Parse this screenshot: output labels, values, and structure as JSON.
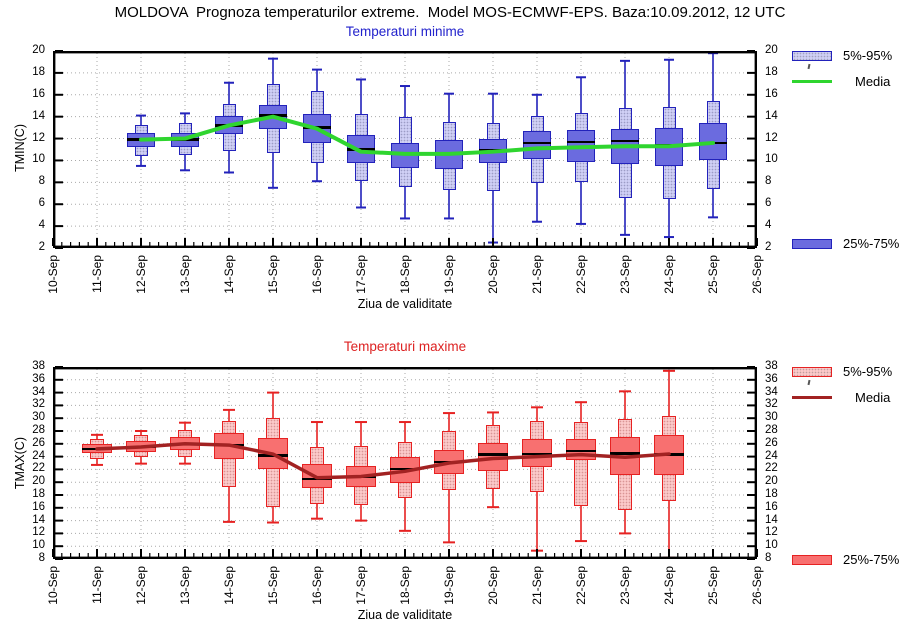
{
  "title": "MOLDOVA  Prognoza temperaturilor extreme.  Model MOS-ECMWF-EPS. Baza:10.09.2012, 12 UTC",
  "chart_data": [
    {
      "type": "boxplot",
      "name": "tmin",
      "title": "Temperaturi minime",
      "ylabel": "TMIN(C)",
      "xlabel": "Ziua de validitate",
      "ylim": [
        2,
        20
      ],
      "ytick_step": 2,
      "yticks": [
        20,
        18,
        16,
        14,
        12,
        10,
        8,
        6,
        4,
        2
      ],
      "grid": true,
      "legend_position": "right",
      "x_categories": [
        "10-Sep",
        "11-Sep",
        "12-Sep",
        "13-Sep",
        "14-Sep",
        "15-Sep",
        "16-Sep",
        "17-Sep",
        "18-Sep",
        "19-Sep",
        "20-Sep",
        "21-Sep",
        "22-Sep",
        "23-Sep",
        "24-Sep",
        "25-Sep",
        "26-Sep"
      ],
      "legend": {
        "p5p95": "5%-95%",
        "media": "Media",
        "p25p75": "25%-75%"
      },
      "colors": {
        "box_border": "#2222bb",
        "box_fill": "#6b6bdf",
        "light_fill": "#cfcff5",
        "median": "#000000",
        "media_line": "#2fd52f",
        "subtitle": "#2222cc"
      },
      "series": [
        {
          "date": "12-Sep",
          "min": 9.5,
          "p5": 10.4,
          "p25": 11.2,
          "median": 11.9,
          "p75": 12.5,
          "p95": 13.2,
          "max": 14.1,
          "media": 11.9
        },
        {
          "date": "13-Sep",
          "min": 9.1,
          "p5": 10.5,
          "p25": 11.2,
          "median": 11.9,
          "p75": 12.5,
          "p95": 13.4,
          "max": 14.3,
          "media": 12.0
        },
        {
          "date": "14-Sep",
          "min": 8.9,
          "p5": 10.9,
          "p25": 12.4,
          "median": 13.2,
          "p75": 14.1,
          "p95": 15.2,
          "max": 17.1,
          "media": 13.2
        },
        {
          "date": "15-Sep",
          "min": 7.5,
          "p5": 10.7,
          "p25": 12.9,
          "median": 14.1,
          "p75": 15.1,
          "p95": 17.0,
          "max": 19.3,
          "media": 14.0
        },
        {
          "date": "16-Sep",
          "min": 8.1,
          "p5": 9.8,
          "p25": 11.6,
          "median": 13.0,
          "p75": 14.2,
          "p95": 16.3,
          "max": 18.3,
          "media": 12.9
        },
        {
          "date": "17-Sep",
          "min": 5.7,
          "p5": 8.1,
          "p25": 9.8,
          "median": 11.0,
          "p75": 12.3,
          "p95": 14.2,
          "max": 17.4,
          "media": 10.8
        },
        {
          "date": "18-Sep",
          "min": 4.7,
          "p5": 7.6,
          "p25": 9.3,
          "median": 10.6,
          "p75": 11.6,
          "p95": 14.0,
          "max": 16.8,
          "media": 10.6
        },
        {
          "date": "19-Sep",
          "min": 4.7,
          "p5": 7.3,
          "p25": 9.2,
          "median": 10.6,
          "p75": 11.9,
          "p95": 13.5,
          "max": 16.1,
          "media": 10.6
        },
        {
          "date": "20-Sep",
          "min": 2.5,
          "p5": 7.2,
          "p25": 9.8,
          "median": 10.9,
          "p75": 12.0,
          "p95": 13.4,
          "max": 16.1,
          "media": 10.8
        },
        {
          "date": "21-Sep",
          "min": 4.4,
          "p5": 7.9,
          "p25": 10.1,
          "median": 11.6,
          "p75": 12.7,
          "p95": 14.1,
          "max": 16.0,
          "media": 11.1
        },
        {
          "date": "22-Sep",
          "min": 4.2,
          "p5": 8.0,
          "p25": 9.9,
          "median": 11.7,
          "p75": 12.8,
          "p95": 14.3,
          "max": 17.6,
          "media": 11.2
        },
        {
          "date": "23-Sep",
          "min": 3.2,
          "p5": 6.6,
          "p25": 9.7,
          "median": 11.8,
          "p75": 12.9,
          "p95": 14.8,
          "max": 19.1,
          "media": 11.3
        },
        {
          "date": "24-Sep",
          "min": 3.0,
          "p5": 6.5,
          "p25": 9.5,
          "median": 11.4,
          "p75": 13.0,
          "p95": 14.9,
          "max": 19.2,
          "media": 11.3
        },
        {
          "date": "25-Sep",
          "min": 4.8,
          "p5": 7.4,
          "p25": 10.0,
          "median": 11.6,
          "p75": 13.4,
          "p95": 15.4,
          "max": 19.8,
          "media": 11.6
        }
      ]
    },
    {
      "type": "boxplot",
      "name": "tmax",
      "title": "Temperaturi maxime",
      "ylabel": "TMAX(C)",
      "xlabel": "Ziua de validitate",
      "ylim": [
        8,
        38
      ],
      "ytick_step": 2,
      "yticks": [
        38,
        36,
        34,
        32,
        30,
        28,
        26,
        24,
        22,
        20,
        18,
        16,
        14,
        12,
        10,
        8
      ],
      "grid": true,
      "legend_position": "right",
      "x_categories": [
        "10-Sep",
        "11-Sep",
        "12-Sep",
        "13-Sep",
        "14-Sep",
        "15-Sep",
        "16-Sep",
        "17-Sep",
        "18-Sep",
        "19-Sep",
        "20-Sep",
        "21-Sep",
        "22-Sep",
        "23-Sep",
        "24-Sep",
        "25-Sep",
        "26-Sep"
      ],
      "legend": {
        "p5p95": "5%-95%",
        "media": "Media",
        "p25p75": "25%-75%"
      },
      "colors": {
        "box_border": "#e62222",
        "box_fill": "#f87070",
        "light_fill": "#fbc9c9",
        "median": "#000000",
        "media_line": "#a22222",
        "subtitle": "#dd2222"
      },
      "series": [
        {
          "date": "11-Sep",
          "min": 22.7,
          "p5": 23.6,
          "p25": 24.5,
          "median": 25.2,
          "p75": 26.0,
          "p95": 26.8,
          "max": 27.4,
          "media": 25.2
        },
        {
          "date": "12-Sep",
          "min": 22.9,
          "p5": 23.9,
          "p25": 24.7,
          "median": 25.5,
          "p75": 26.4,
          "p95": 27.3,
          "max": 28.0,
          "media": 25.5
        },
        {
          "date": "13-Sep",
          "min": 22.9,
          "p5": 23.9,
          "p25": 25.0,
          "median": 26.0,
          "p75": 27.0,
          "p95": 28.1,
          "max": 29.3,
          "media": 26.0
        },
        {
          "date": "14-Sep",
          "min": 13.8,
          "p5": 19.3,
          "p25": 23.7,
          "median": 25.8,
          "p75": 27.7,
          "p95": 29.5,
          "max": 31.3,
          "media": 25.8
        },
        {
          "date": "15-Sep",
          "min": 13.7,
          "p5": 16.2,
          "p25": 22.1,
          "median": 24.2,
          "p75": 26.9,
          "p95": 30.1,
          "max": 34.0,
          "media": 24.4
        },
        {
          "date": "16-Sep",
          "min": 14.3,
          "p5": 16.6,
          "p25": 19.1,
          "median": 20.5,
          "p75": 22.9,
          "p95": 25.5,
          "max": 29.4,
          "media": 20.7
        },
        {
          "date": "17-Sep",
          "min": 14.0,
          "p5": 16.4,
          "p25": 19.2,
          "median": 20.8,
          "p75": 22.6,
          "p95": 25.6,
          "max": 29.4,
          "media": 20.9
        },
        {
          "date": "18-Sep",
          "min": 12.4,
          "p5": 17.6,
          "p25": 19.8,
          "median": 22.1,
          "p75": 23.9,
          "p95": 26.3,
          "max": 29.4,
          "media": 21.7
        },
        {
          "date": "19-Sep",
          "min": 10.6,
          "p5": 18.8,
          "p25": 21.3,
          "median": 23.2,
          "p75": 25.1,
          "p95": 28.0,
          "max": 30.8,
          "media": 23.0
        },
        {
          "date": "20-Sep",
          "min": 16.1,
          "p5": 19.0,
          "p25": 21.7,
          "median": 24.3,
          "p75": 26.1,
          "p95": 29.0,
          "max": 30.9,
          "media": 23.7
        },
        {
          "date": "21-Sep",
          "min": 9.3,
          "p5": 18.4,
          "p25": 22.3,
          "median": 24.4,
          "p75": 26.8,
          "p95": 29.5,
          "max": 31.7,
          "media": 24.0
        },
        {
          "date": "22-Sep",
          "min": 10.8,
          "p5": 16.3,
          "p25": 23.4,
          "median": 24.9,
          "p75": 26.8,
          "p95": 29.4,
          "max": 32.5,
          "media": 24.3
        },
        {
          "date": "23-Sep",
          "min": 12.0,
          "p5": 15.6,
          "p25": 21.1,
          "median": 24.5,
          "p75": 27.1,
          "p95": 29.9,
          "max": 34.2,
          "media": 23.9
        },
        {
          "date": "24-Sep",
          "min": 8.2,
          "p5": 17.0,
          "p25": 21.2,
          "median": 24.3,
          "p75": 27.4,
          "p95": 30.4,
          "max": 37.4,
          "media": 24.4
        }
      ]
    }
  ]
}
